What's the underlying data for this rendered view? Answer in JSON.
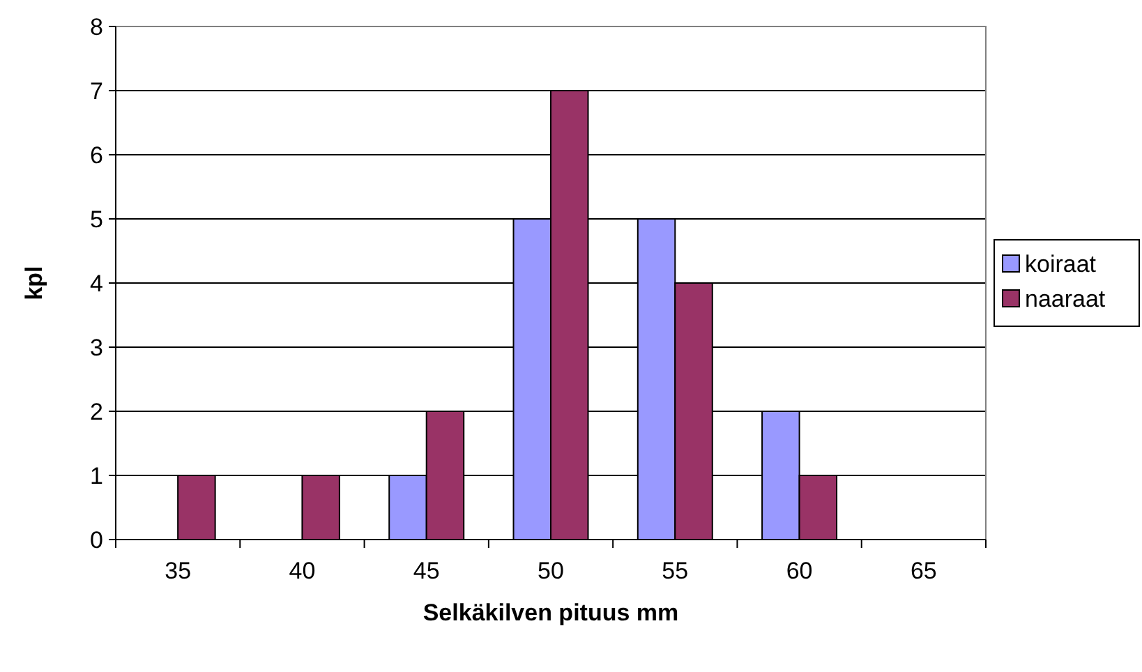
{
  "chart_data": {
    "type": "bar",
    "xlabel": "Selkäkilven pituus mm",
    "ylabel": "kpl",
    "categories": [
      "35",
      "40",
      "45",
      "50",
      "55",
      "60",
      "65"
    ],
    "series": [
      {
        "name": "koiraat",
        "color": "#9999ff",
        "values": [
          0,
          0,
          1,
          5,
          5,
          2,
          0
        ]
      },
      {
        "name": "naaraat",
        "color": "#993366",
        "values": [
          1,
          1,
          2,
          7,
          4,
          1,
          0
        ]
      }
    ],
    "ylim": [
      0,
      8
    ],
    "yticks": [
      0,
      1,
      2,
      3,
      4,
      5,
      6,
      7,
      8
    ],
    "grid": "y",
    "legend": "right"
  }
}
